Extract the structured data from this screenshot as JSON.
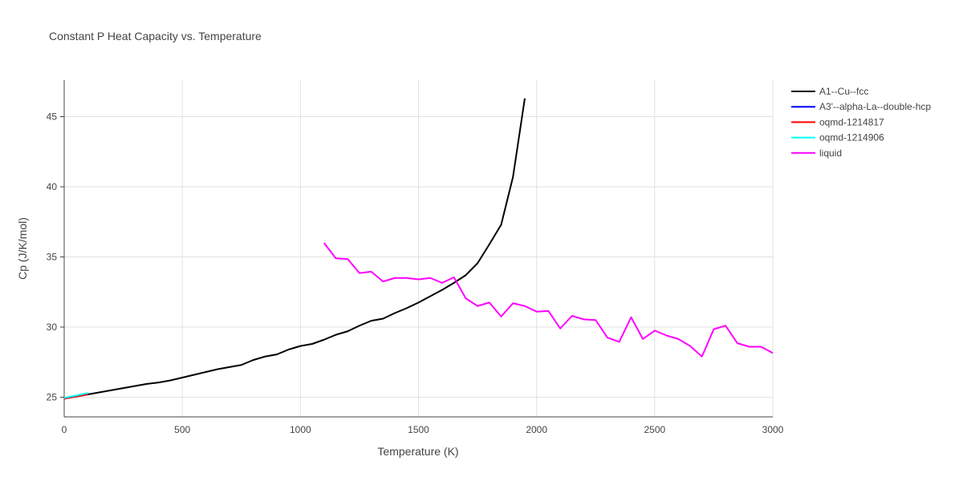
{
  "chart_data": {
    "type": "line",
    "title": "Constant P Heat Capacity vs. Temperature",
    "xlabel": "Temperature (K)",
    "ylabel": "Cp (J/K/mol)",
    "xlim": [
      0,
      3000
    ],
    "ylim": [
      23.6,
      47.6
    ],
    "x_ticks": [
      0,
      500,
      1000,
      1500,
      2000,
      2500,
      3000
    ],
    "x_tick_labels": [
      "0",
      "500",
      "1000",
      "1500",
      "2000",
      "2500",
      "3000"
    ],
    "y_ticks": [
      25,
      30,
      35,
      40,
      45
    ],
    "y_tick_labels": [
      "25",
      "30",
      "35",
      "40",
      "45"
    ],
    "grid": true,
    "legend_position": "top-right",
    "series": [
      {
        "name": "A1--Cu--fcc",
        "color": "#000000",
        "x": [
          0,
          50,
          100,
          150,
          200,
          250,
          300,
          350,
          400,
          450,
          500,
          550,
          600,
          650,
          700,
          750,
          800,
          850,
          900,
          950,
          1000,
          1050,
          1100,
          1150,
          1200,
          1250,
          1300,
          1350,
          1400,
          1450,
          1500,
          1550,
          1600,
          1650,
          1700,
          1750,
          1800,
          1850,
          1900,
          1950
        ],
        "y": [
          24.9,
          25.05,
          25.2,
          25.35,
          25.5,
          25.65,
          25.8,
          25.95,
          26.05,
          26.2,
          26.4,
          26.6,
          26.8,
          27.0,
          27.15,
          27.3,
          27.65,
          27.9,
          28.05,
          28.4,
          28.65,
          28.8,
          29.1,
          29.45,
          29.7,
          30.1,
          30.45,
          30.6,
          31.0,
          31.35,
          31.75,
          32.2,
          32.65,
          33.15,
          33.7,
          34.55,
          35.9,
          37.3,
          40.7,
          46.3
        ]
      },
      {
        "name": "A3'--alpha-La--double-hcp",
        "color": "#0000ff",
        "x": [
          0,
          50,
          100
        ],
        "y": [
          24.9,
          25.05,
          25.2
        ]
      },
      {
        "name": "oqmd-1214817",
        "color": "#ff0000",
        "x": [
          0,
          50,
          100
        ],
        "y": [
          24.9,
          25.05,
          25.2
        ]
      },
      {
        "name": "oqmd-1214906",
        "color": "#00ffff",
        "x": [
          0,
          50,
          100
        ],
        "y": [
          24.95,
          25.12,
          25.3
        ]
      },
      {
        "name": "liquid",
        "color": "#ff00ff",
        "x": [
          1100,
          1150,
          1200,
          1250,
          1300,
          1350,
          1400,
          1450,
          1500,
          1550,
          1600,
          1650,
          1700,
          1750,
          1800,
          1850,
          1900,
          1950,
          2000,
          2050,
          2100,
          2150,
          2200,
          2250,
          2300,
          2350,
          2400,
          2450,
          2500,
          2550,
          2600,
          2650,
          2700,
          2750,
          2800,
          2850,
          2900,
          2950,
          3000
        ],
        "y": [
          36.0,
          34.9,
          34.85,
          33.85,
          33.95,
          33.25,
          33.5,
          33.5,
          33.4,
          33.5,
          33.15,
          33.55,
          32.05,
          31.5,
          31.75,
          30.75,
          31.7,
          31.5,
          31.1,
          31.15,
          29.9,
          30.8,
          30.55,
          30.5,
          29.25,
          28.95,
          30.7,
          29.15,
          29.75,
          29.4,
          29.15,
          28.65,
          27.9,
          29.85,
          30.1,
          28.85,
          28.6,
          28.6,
          28.15
        ]
      }
    ]
  }
}
